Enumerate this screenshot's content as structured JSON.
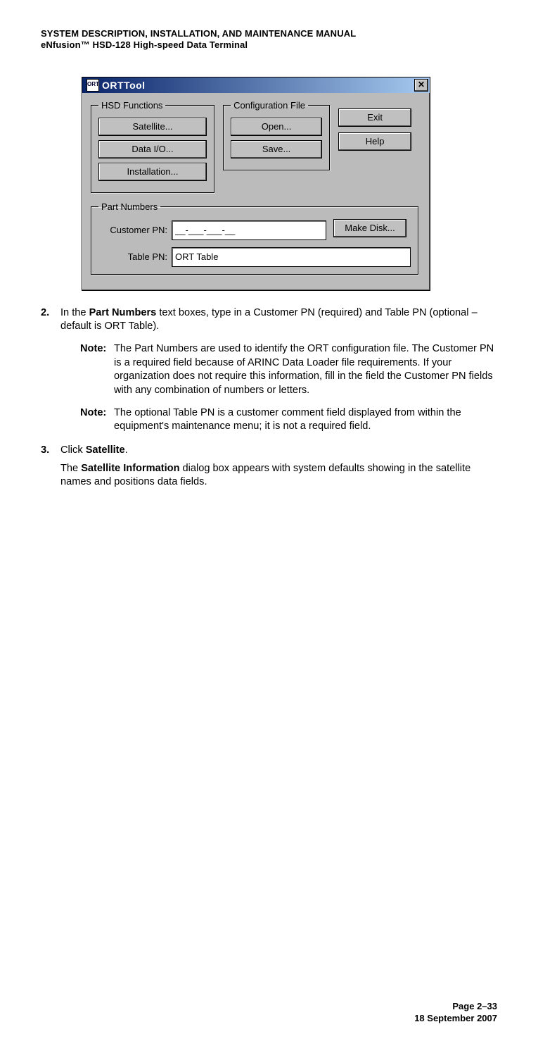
{
  "header": {
    "line1": "SYSTEM DESCRIPTION, INSTALLATION, AND MAINTENANCE MANUAL",
    "line2": "eNfusion™ HSD-128 High-speed Data Terminal"
  },
  "dialog": {
    "title": "ORTTool",
    "icon_text": "ORT",
    "groups": {
      "hsd": {
        "legend": "HSD Functions",
        "buttons": [
          "Satellite...",
          "Data I/O...",
          "Installation..."
        ]
      },
      "cfg": {
        "legend": "Configuration File",
        "buttons": [
          "Open...",
          "Save..."
        ]
      },
      "side": {
        "buttons": [
          "Exit",
          "Help"
        ]
      },
      "pn": {
        "legend": "Part Numbers",
        "customer_label": "Customer PN:",
        "customer_value": "__-___-___-__",
        "table_label": "Table PN:",
        "table_value": "ORT Table",
        "make_disk": "Make Disk..."
      }
    },
    "close": "✕"
  },
  "steps": {
    "s2": {
      "text_a": "In the ",
      "bold_a": "Part Numbers",
      "text_b": " text boxes, type in a Customer PN (required) and Table PN (optional – default is ORT Table)."
    },
    "note1": "The Part Numbers are used to identify the ORT configuration file. The Customer PN is a required field because of ARINC Data Loader file requirements. If your organization does not require this information, fill in the field the Customer PN fields with any combination of numbers or letters.",
    "note2": "The optional Table PN is a customer comment field displayed from within the equipment's maintenance menu; it is not a required field.",
    "s3": {
      "text_a": "Click ",
      "bold_a": "Satellite",
      "text_b": "."
    },
    "after": {
      "text_a": "The ",
      "bold_a": "Satellite Information",
      "text_b": " dialog box appears with system defaults showing in the satellite names and positions data fields."
    },
    "note_label": "Note:"
  },
  "footer": {
    "line1": "Page 2–33",
    "line2": "18 September 2007"
  }
}
